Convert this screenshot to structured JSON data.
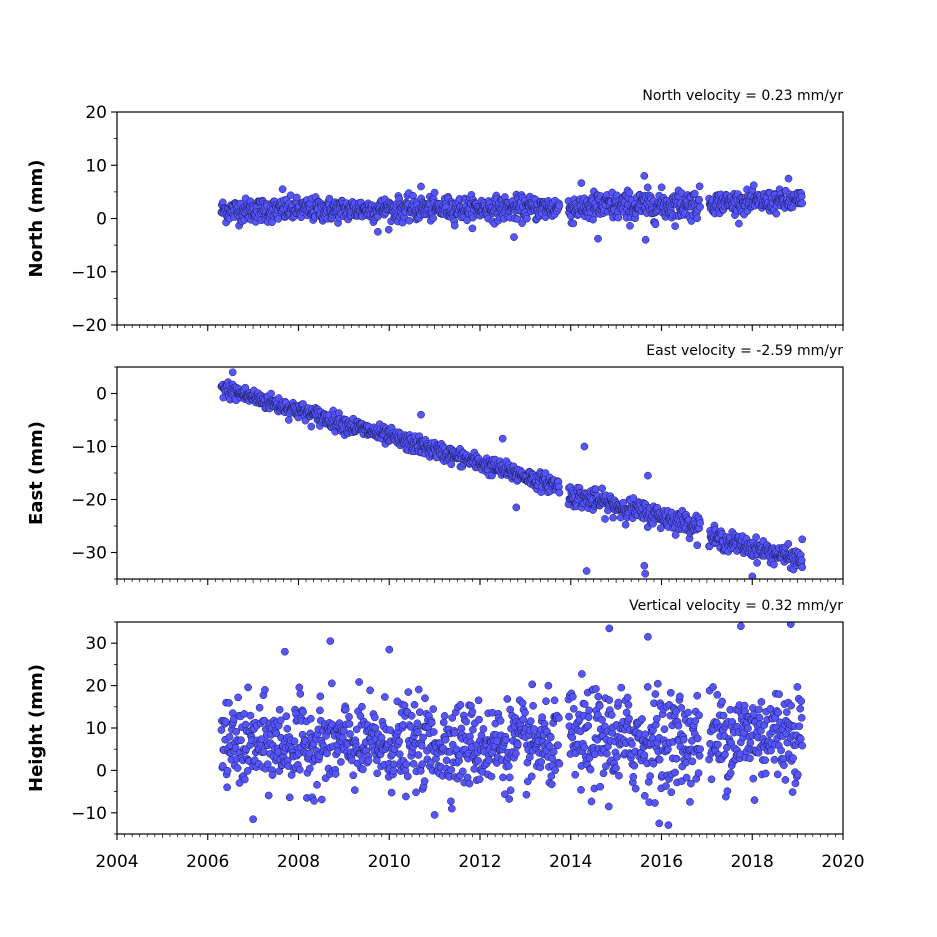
{
  "chart_data": [
    {
      "type": "scatter",
      "title": "North velocity = 0.23 mm/yr",
      "ylabel": "North (mm)",
      "xlabel": "",
      "xlim": [
        2004,
        2020
      ],
      "ylim": [
        -20,
        20
      ],
      "yticks": [
        -20,
        -10,
        0,
        10,
        20
      ],
      "ytick_labels": [
        "−20",
        "−10",
        "0",
        "10",
        "20"
      ],
      "marker_color": "#5555ff",
      "segments": [
        {
          "t0": 2006.3,
          "t1": 2013.75,
          "y0": 1.5,
          "y1": 2.0,
          "noise": 1.1
        },
        {
          "t0": 2013.95,
          "t1": 2016.85,
          "y0": 2.0,
          "y1": 2.7,
          "noise": 1.4
        },
        {
          "t0": 2017.05,
          "t1": 2019.1,
          "y0": 3.0,
          "y1": 3.2,
          "noise": 1.0
        }
      ],
      "outliers": [
        {
          "x": 2015.62,
          "y": 8.0
        },
        {
          "x": 2015.65,
          "y": -4.0
        },
        {
          "x": 2012.75,
          "y": -3.5
        },
        {
          "x": 2014.6,
          "y": -3.8
        },
        {
          "x": 2009.75,
          "y": -2.5
        },
        {
          "x": 2018.8,
          "y": 7.5
        },
        {
          "x": 2010.7,
          "y": 6.0
        },
        {
          "x": 2007.65,
          "y": 5.5
        }
      ]
    },
    {
      "type": "scatter",
      "title": "East velocity = -2.59 mm/yr",
      "ylabel": "East (mm)",
      "xlabel": "",
      "xlim": [
        2004,
        2020
      ],
      "ylim": [
        -35,
        5
      ],
      "yticks": [
        -30,
        -20,
        -10,
        0
      ],
      "ytick_labels": [
        "−30",
        "−20",
        "−10",
        "0"
      ],
      "marker_color": "#5555ff",
      "segments": [
        {
          "t0": 2006.3,
          "t1": 2013.75,
          "y0": 1.0,
          "y1": -17.5,
          "noise": 0.8
        },
        {
          "t0": 2013.95,
          "t1": 2016.85,
          "y0": -19.0,
          "y1": -25.0,
          "noise": 1.0
        },
        {
          "t0": 2017.05,
          "t1": 2019.1,
          "y0": -27.0,
          "y1": -31.5,
          "noise": 0.9
        }
      ],
      "outliers": [
        {
          "x": 2006.55,
          "y": 4.0
        },
        {
          "x": 2014.3,
          "y": -10.0
        },
        {
          "x": 2014.35,
          "y": -33.5
        },
        {
          "x": 2015.62,
          "y": -32.5
        },
        {
          "x": 2015.64,
          "y": -34.0
        },
        {
          "x": 2015.7,
          "y": -15.5
        },
        {
          "x": 2012.8,
          "y": -21.5
        },
        {
          "x": 2018.0,
          "y": -34.5
        },
        {
          "x": 2012.5,
          "y": -8.5
        },
        {
          "x": 2010.7,
          "y": -4.0
        },
        {
          "x": 2019.1,
          "y": -27.5
        }
      ]
    },
    {
      "type": "scatter",
      "title": "Vertical velocity = 0.32 mm/yr",
      "ylabel": "Height (mm)",
      "xlabel": "",
      "xlim": [
        2004,
        2020
      ],
      "ylim": [
        -15,
        35
      ],
      "yticks": [
        -10,
        0,
        10,
        20,
        30
      ],
      "ytick_labels": [
        "−10",
        "0",
        "10",
        "20",
        "30"
      ],
      "xticks": [
        2004,
        2006,
        2008,
        2010,
        2012,
        2014,
        2016,
        2018,
        2020
      ],
      "xtick_labels": [
        "2004",
        "2006",
        "2008",
        "2010",
        "2012",
        "2014",
        "2016",
        "2018",
        "2020"
      ],
      "marker_color": "#5555ff",
      "segments": [
        {
          "t0": 2006.3,
          "t1": 2013.75,
          "y0": 6.0,
          "y1": 6.0,
          "noise": 5.0
        },
        {
          "t0": 2013.95,
          "t1": 2016.85,
          "y0": 7.0,
          "y1": 7.0,
          "noise": 6.0
        },
        {
          "t0": 2017.05,
          "t1": 2019.1,
          "y0": 8.0,
          "y1": 9.0,
          "noise": 5.5
        }
      ],
      "outliers": [
        {
          "x": 2008.7,
          "y": 30.5
        },
        {
          "x": 2014.85,
          "y": 33.5
        },
        {
          "x": 2015.7,
          "y": 31.5
        },
        {
          "x": 2017.75,
          "y": 34.0
        },
        {
          "x": 2018.85,
          "y": 34.5
        },
        {
          "x": 2015.95,
          "y": -12.5
        },
        {
          "x": 2007.0,
          "y": -11.5
        },
        {
          "x": 2010.0,
          "y": 28.5
        },
        {
          "x": 2007.7,
          "y": 28.0
        },
        {
          "x": 2011.0,
          "y": -10.5
        },
        {
          "x": 2018.05,
          "y": -7.0
        }
      ]
    }
  ]
}
